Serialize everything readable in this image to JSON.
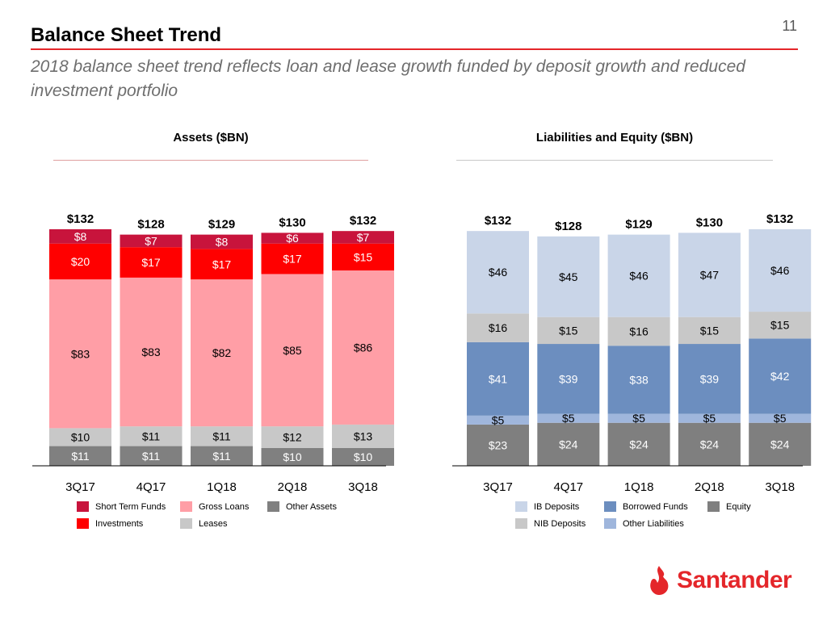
{
  "page_number": "11",
  "title": "Balance Sheet Trend",
  "subtitle": "2018 balance sheet trend reflects loan and lease growth funded by deposit growth and reduced investment portfolio",
  "brand": {
    "name": "Santander",
    "color": "#e4262a",
    "logo_icon": "flame-icon"
  },
  "chart_data": [
    {
      "type": "bar",
      "stacked": true,
      "title": "Assets ($BN)",
      "categories": [
        "3Q17",
        "4Q17",
        "1Q18",
        "2Q18",
        "3Q18"
      ],
      "totals": [
        "$132",
        "$128",
        "$129",
        "$130",
        "$132"
      ],
      "series": [
        {
          "name": "Other Assets",
          "color": "#808080",
          "text_color": "#ffffff",
          "values": [
            11,
            11,
            11,
            10,
            10
          ]
        },
        {
          "name": "Leases",
          "color": "#c8c8c8",
          "text_color": "#000000",
          "values": [
            10,
            11,
            11,
            12,
            13
          ]
        },
        {
          "name": "Gross Loans",
          "color": "#ff9ea6",
          "text_color": "#000000",
          "values": [
            83,
            83,
            82,
            85,
            86
          ]
        },
        {
          "name": "Investments",
          "color": "#ff0000",
          "text_color": "#ffffff",
          "values": [
            20,
            17,
            17,
            17,
            15
          ]
        },
        {
          "name": "Short Term Funds",
          "color": "#c8143c",
          "text_color": "#ffffff",
          "values": [
            8,
            7,
            8,
            6,
            7
          ]
        }
      ],
      "legend_rows": [
        [
          "Short Term Funds",
          "Gross Loans",
          "Other Assets"
        ],
        [
          "Investments",
          "Leases"
        ]
      ]
    },
    {
      "type": "bar",
      "stacked": true,
      "title": "Liabilities and Equity ($BN)",
      "categories": [
        "3Q17",
        "4Q17",
        "1Q18",
        "2Q18",
        "3Q18"
      ],
      "totals": [
        "$132",
        "$128",
        "$129",
        "$130",
        "$132"
      ],
      "series": [
        {
          "name": "Equity",
          "color": "#7f7f7f",
          "text_color": "#ffffff",
          "values": [
            23,
            24,
            24,
            24,
            24
          ]
        },
        {
          "name": "Other Liabilities",
          "color": "#9fb6dc",
          "text_color": "#000000",
          "values": [
            5,
            5,
            5,
            5,
            5
          ]
        },
        {
          "name": "Borrowed Funds",
          "color": "#6c8ebf",
          "text_color": "#ffffff",
          "values": [
            41,
            39,
            38,
            39,
            42
          ]
        },
        {
          "name": "NIB Deposits",
          "color": "#c8c8c8",
          "text_color": "#000000",
          "values": [
            16,
            15,
            16,
            15,
            15
          ]
        },
        {
          "name": "IB Deposits",
          "color": "#c9d5e8",
          "text_color": "#000000",
          "values": [
            46,
            45,
            46,
            47,
            46
          ]
        }
      ],
      "legend_rows": [
        [
          "IB Deposits",
          "Borrowed Funds",
          "Equity"
        ],
        [
          "NIB Deposits",
          "Other Liabilities"
        ]
      ]
    }
  ]
}
